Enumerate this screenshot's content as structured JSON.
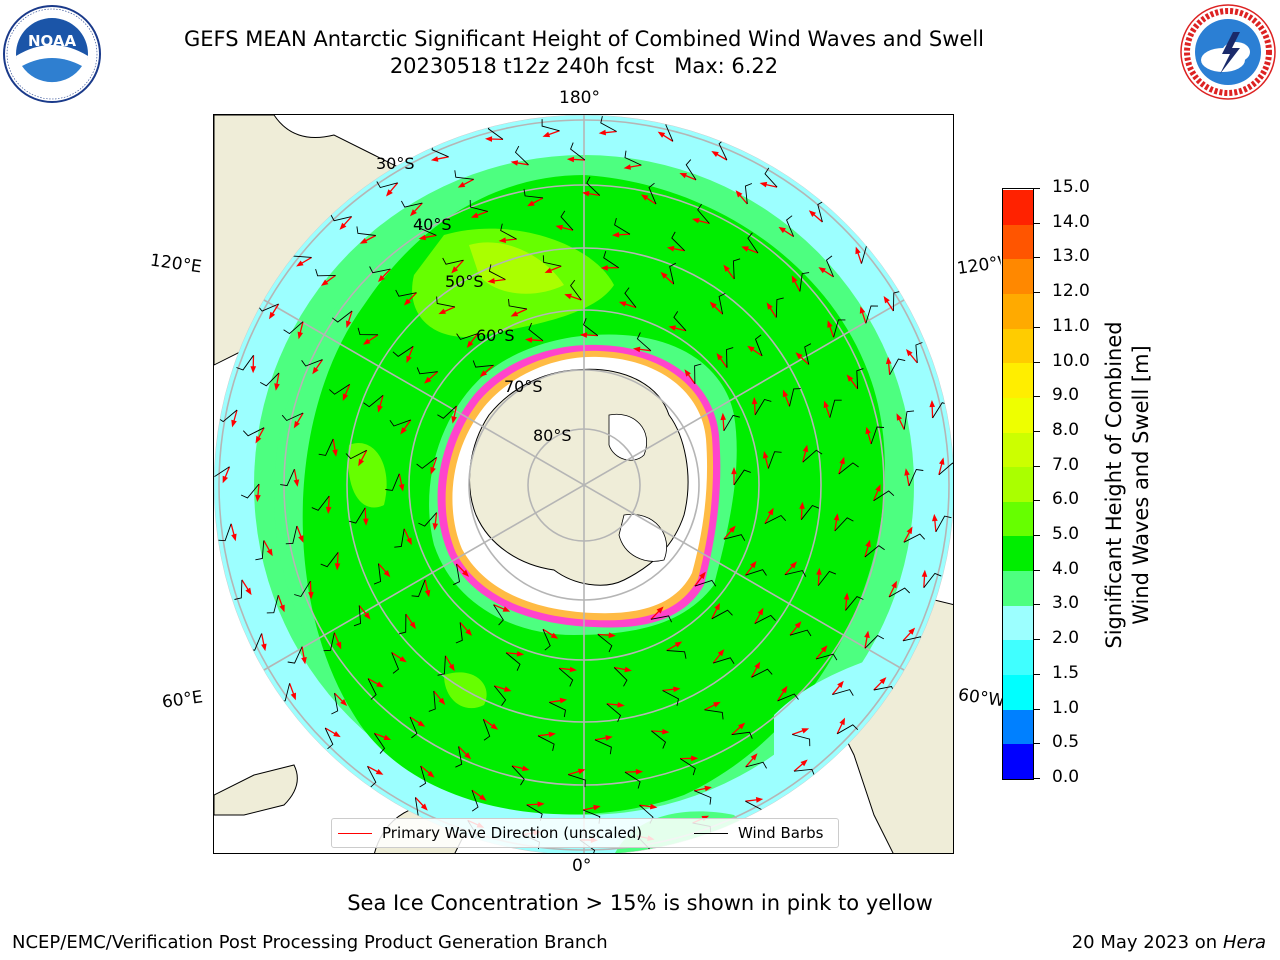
{
  "title_line1": "GEFS MEAN Antarctic Significant Height of Combined Wind Waves and Swell",
  "title_line2": "20230518 t12z 240h fcst   Max: 6.22",
  "lon_labels": {
    "top": "180°",
    "bottom": "0°",
    "left_upper": "120°E",
    "left_lower": "60°E",
    "right_upper": "120°W",
    "right_lower": "60°W"
  },
  "lat_labels": [
    "30°S",
    "40°S",
    "50°S",
    "60°S",
    "70°S",
    "80°S"
  ],
  "legend": {
    "wave_direction": "Primary Wave Direction (unscaled)",
    "wind_barbs": "Wind Barbs",
    "wave_color": "#ff0000",
    "barb_color": "#000000"
  },
  "colorbar": {
    "label_line1": "Significant Height of Combined",
    "label_line2": "Wind Waves and Swell [m]",
    "ticks": [
      "0.0",
      "0.5",
      "1.0",
      "1.5",
      "2.0",
      "3.0",
      "4.0",
      "5.0",
      "6.0",
      "7.0",
      "8.0",
      "9.0",
      "10.0",
      "11.0",
      "12.0",
      "13.0",
      "14.0",
      "15.0"
    ],
    "colors": [
      "#0000ff",
      "#0080ff",
      "#00ffff",
      "#40ffff",
      "#9cffff",
      "#4dff80",
      "#00ee00",
      "#66ff00",
      "#aaff00",
      "#ccff00",
      "#eeff00",
      "#ffee00",
      "#ffcc00",
      "#ffaa00",
      "#ff8800",
      "#ff5500",
      "#ff2200",
      "#ff0000"
    ]
  },
  "max_value": 6.22,
  "note": "Sea Ice Concentration > 15% is shown in pink to yellow",
  "footer_left": "NCEP/EMC/Verification Post Processing Product Generation Branch",
  "footer_date": "20 May 2023 on",
  "footer_host": "Hera",
  "colors": {
    "land": "#efedd8",
    "ice_shelf": "#ffffff",
    "sea_ice": "#ff44cc",
    "grid": "#b5b5b5"
  }
}
